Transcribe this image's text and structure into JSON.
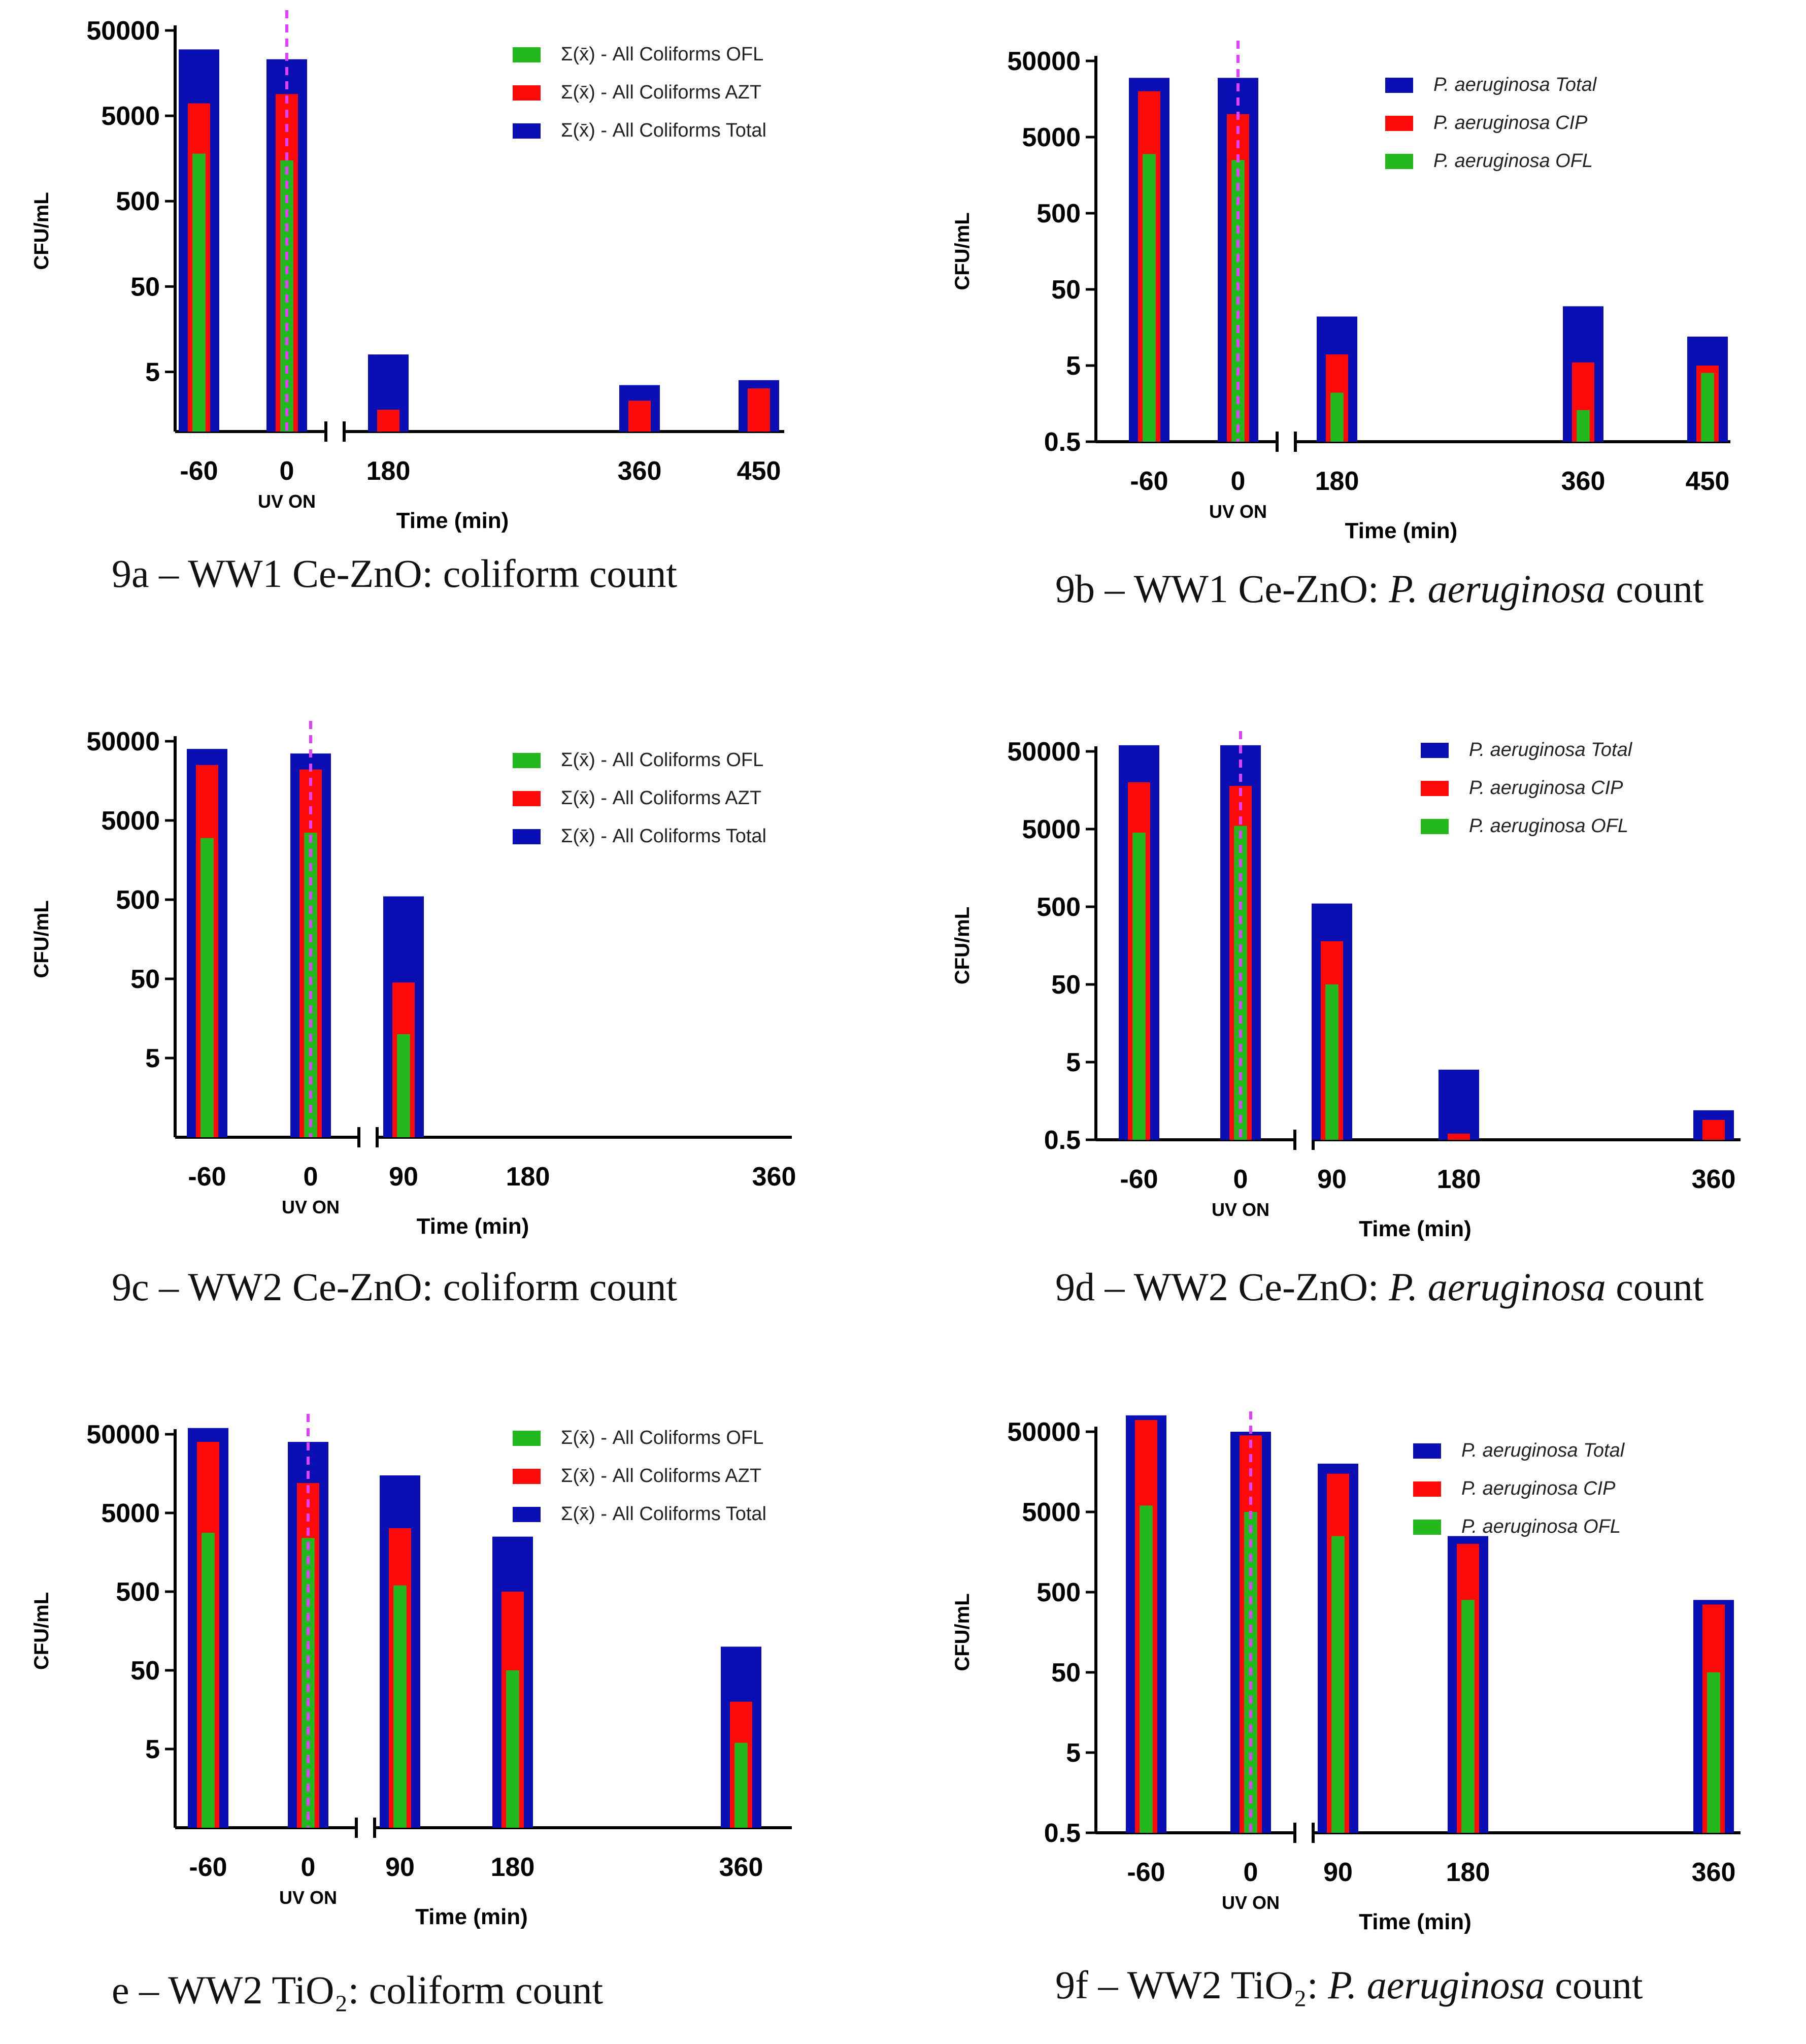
{
  "colors": {
    "total": "#0a0fb4",
    "azt_cip": "#ff0a0a",
    "ofl": "#22b81e",
    "uv_marker": "#e040ff",
    "axis": "#000000"
  },
  "chart_data": [
    {
      "id": "a",
      "type": "bar",
      "caption": {
        "text": "9a – WW1 Ce-ZnO: coliform count",
        "prefix": "",
        "italic": "",
        "suffix": ""
      },
      "ylabel": "CFU/mL",
      "xlabel": "Time (min)",
      "uv_label": "UV ON",
      "yscale": "log",
      "ylim": [
        1,
        50000
      ],
      "yticks": [
        "5",
        "50",
        "500",
        "5000",
        "50000"
      ],
      "categories": [
        "-60",
        "0",
        "180",
        "360",
        "450"
      ],
      "x_scale": "broken",
      "legend_position": "top-right",
      "legend_order": [
        "ofl",
        "azt_cip",
        "total"
      ],
      "series": [
        {
          "key": "total",
          "name": "Σ(x̄) - All Coliforms Total",
          "values": [
            30000,
            23000,
            8,
            3.5,
            4
          ]
        },
        {
          "key": "azt_cip",
          "name": "Σ(x̄) - All Coliforms AZT",
          "values": [
            7000,
            9000,
            1.8,
            2.3,
            3.2
          ]
        },
        {
          "key": "ofl",
          "name": "Σ(x̄) - All Coliforms OFL",
          "values": [
            1800,
            1500,
            null,
            null,
            null
          ]
        }
      ]
    },
    {
      "id": "b",
      "type": "bar",
      "caption": {
        "text": "",
        "prefix": "9b – WW1 Ce-ZnO: ",
        "italic": "P. aeruginosa",
        "suffix": " count"
      },
      "ylabel": "CFU/mL",
      "xlabel": "Time (min)",
      "uv_label": "UV ON",
      "yscale": "log",
      "ylim": [
        0.5,
        50000
      ],
      "yticks": [
        "0.5",
        "5",
        "50",
        "500",
        "5000",
        "50000"
      ],
      "categories": [
        "-60",
        "0",
        "180",
        "360",
        "450"
      ],
      "x_scale": "broken",
      "legend_position": "top-right",
      "legend_order": [
        "total",
        "azt_cip",
        "ofl"
      ],
      "series": [
        {
          "key": "total",
          "name": "P. aeruginosa Total",
          "values": [
            30000,
            30000,
            22,
            30,
            12
          ]
        },
        {
          "key": "azt_cip",
          "name": "P. aeruginosa CIP",
          "values": [
            20000,
            10000,
            7,
            5.5,
            5
          ]
        },
        {
          "key": "ofl",
          "name": "P. aeruginosa OFL",
          "values": [
            3000,
            2500,
            2.2,
            1.3,
            4
          ]
        }
      ]
    },
    {
      "id": "c",
      "type": "bar",
      "caption": {
        "text": "9c – WW2 Ce-ZnO: coliform count",
        "prefix": "",
        "italic": "",
        "suffix": ""
      },
      "ylabel": "CFU/mL",
      "xlabel": "Time (min)",
      "uv_label": "UV ON",
      "yscale": "log",
      "ylim": [
        0.5,
        50000
      ],
      "yticks": [
        "5",
        "50",
        "500",
        "5000",
        "50000"
      ],
      "categories": [
        "-60",
        "0",
        "90",
        "180",
        "360"
      ],
      "x_scale": "broken",
      "legend_position": "top-right",
      "legend_order": [
        "ofl",
        "azt_cip",
        "total"
      ],
      "series": [
        {
          "key": "total",
          "name": "Σ(x̄) - All Coliforms Total",
          "values": [
            40000,
            35000,
            550,
            null,
            null
          ]
        },
        {
          "key": "azt_cip",
          "name": "Σ(x̄) - All Coliforms AZT",
          "values": [
            25000,
            22000,
            45,
            null,
            null
          ]
        },
        {
          "key": "ofl",
          "name": "Σ(x̄) - All Coliforms OFL",
          "values": [
            3000,
            3500,
            10,
            null,
            null
          ]
        }
      ]
    },
    {
      "id": "d",
      "type": "bar",
      "caption": {
        "text": "",
        "prefix": "9d – WW2 Ce-ZnO: ",
        "italic": "P. aeruginosa",
        "suffix": " count"
      },
      "ylabel": "CFU/mL",
      "xlabel": "Time (min)",
      "uv_label": "UV ON",
      "yscale": "log",
      "ylim": [
        0.5,
        50000
      ],
      "yticks": [
        "0.5",
        "5",
        "50",
        "500",
        "5000",
        "50000"
      ],
      "categories": [
        "-60",
        "0",
        "90",
        "180",
        "360"
      ],
      "x_scale": "broken",
      "legend_position": "top-right",
      "legend_order": [
        "total",
        "azt_cip",
        "ofl"
      ],
      "series": [
        {
          "key": "total",
          "name": "P. aeruginosa Total",
          "values": [
            60000,
            60000,
            550,
            4,
            1.2
          ]
        },
        {
          "key": "azt_cip",
          "name": "P. aeruginosa CIP",
          "values": [
            20000,
            18000,
            180,
            0.6,
            0.9
          ]
        },
        {
          "key": "ofl",
          "name": "P. aeruginosa OFL",
          "values": [
            4500,
            5500,
            50,
            null,
            null
          ]
        }
      ]
    },
    {
      "id": "e",
      "type": "bar",
      "caption": {
        "text": "e – WW2 TiO₂: coliform count",
        "prefix": "",
        "italic": "",
        "suffix": ""
      },
      "ylabel": "CFU/mL",
      "xlabel": "Time (min)",
      "uv_label": "UV ON",
      "yscale": "log",
      "ylim": [
        0.5,
        50000
      ],
      "yticks": [
        "5",
        "50",
        "500",
        "5000",
        "50000"
      ],
      "categories": [
        "-60",
        "0",
        "90",
        "180",
        "360"
      ],
      "x_scale": "broken",
      "legend_position": "top-right",
      "legend_order": [
        "ofl",
        "azt_cip",
        "total"
      ],
      "series": [
        {
          "key": "total",
          "name": "Σ(x̄) - All Coliforms Total",
          "values": [
            60000,
            40000,
            15000,
            2500,
            100
          ]
        },
        {
          "key": "azt_cip",
          "name": "Σ(x̄) - All Coliforms AZT",
          "values": [
            40000,
            12000,
            3200,
            500,
            20
          ]
        },
        {
          "key": "ofl",
          "name": "Σ(x̄) - All Coliforms OFL",
          "values": [
            2800,
            2400,
            600,
            50,
            6
          ]
        }
      ]
    },
    {
      "id": "f",
      "type": "bar",
      "caption": {
        "text": "",
        "prefix": "9f – WW2 TiO₂: ",
        "italic": "P. aeruginosa",
        "suffix": " count"
      },
      "ylabel": "CFU/mL",
      "xlabel": "Time (min)",
      "uv_label": "UV ON",
      "yscale": "log",
      "ylim": [
        0.5,
        50000
      ],
      "yticks": [
        "0.5",
        "5",
        "50",
        "500",
        "5000",
        "50000"
      ],
      "categories": [
        "-60",
        "0",
        "90",
        "180",
        "360"
      ],
      "x_scale": "broken",
      "legend_position": "top-right",
      "legend_order": [
        "total",
        "azt_cip",
        "ofl"
      ],
      "series": [
        {
          "key": "total",
          "name": "P. aeruginosa Total",
          "values": [
            80000,
            50000,
            20000,
            2500,
            400
          ]
        },
        {
          "key": "azt_cip",
          "name": "P. aeruginosa CIP",
          "values": [
            70000,
            45000,
            15000,
            2000,
            350
          ]
        },
        {
          "key": "ofl",
          "name": "P. aeruginosa OFL",
          "values": [
            6000,
            5000,
            2500,
            400,
            50
          ]
        }
      ]
    }
  ]
}
